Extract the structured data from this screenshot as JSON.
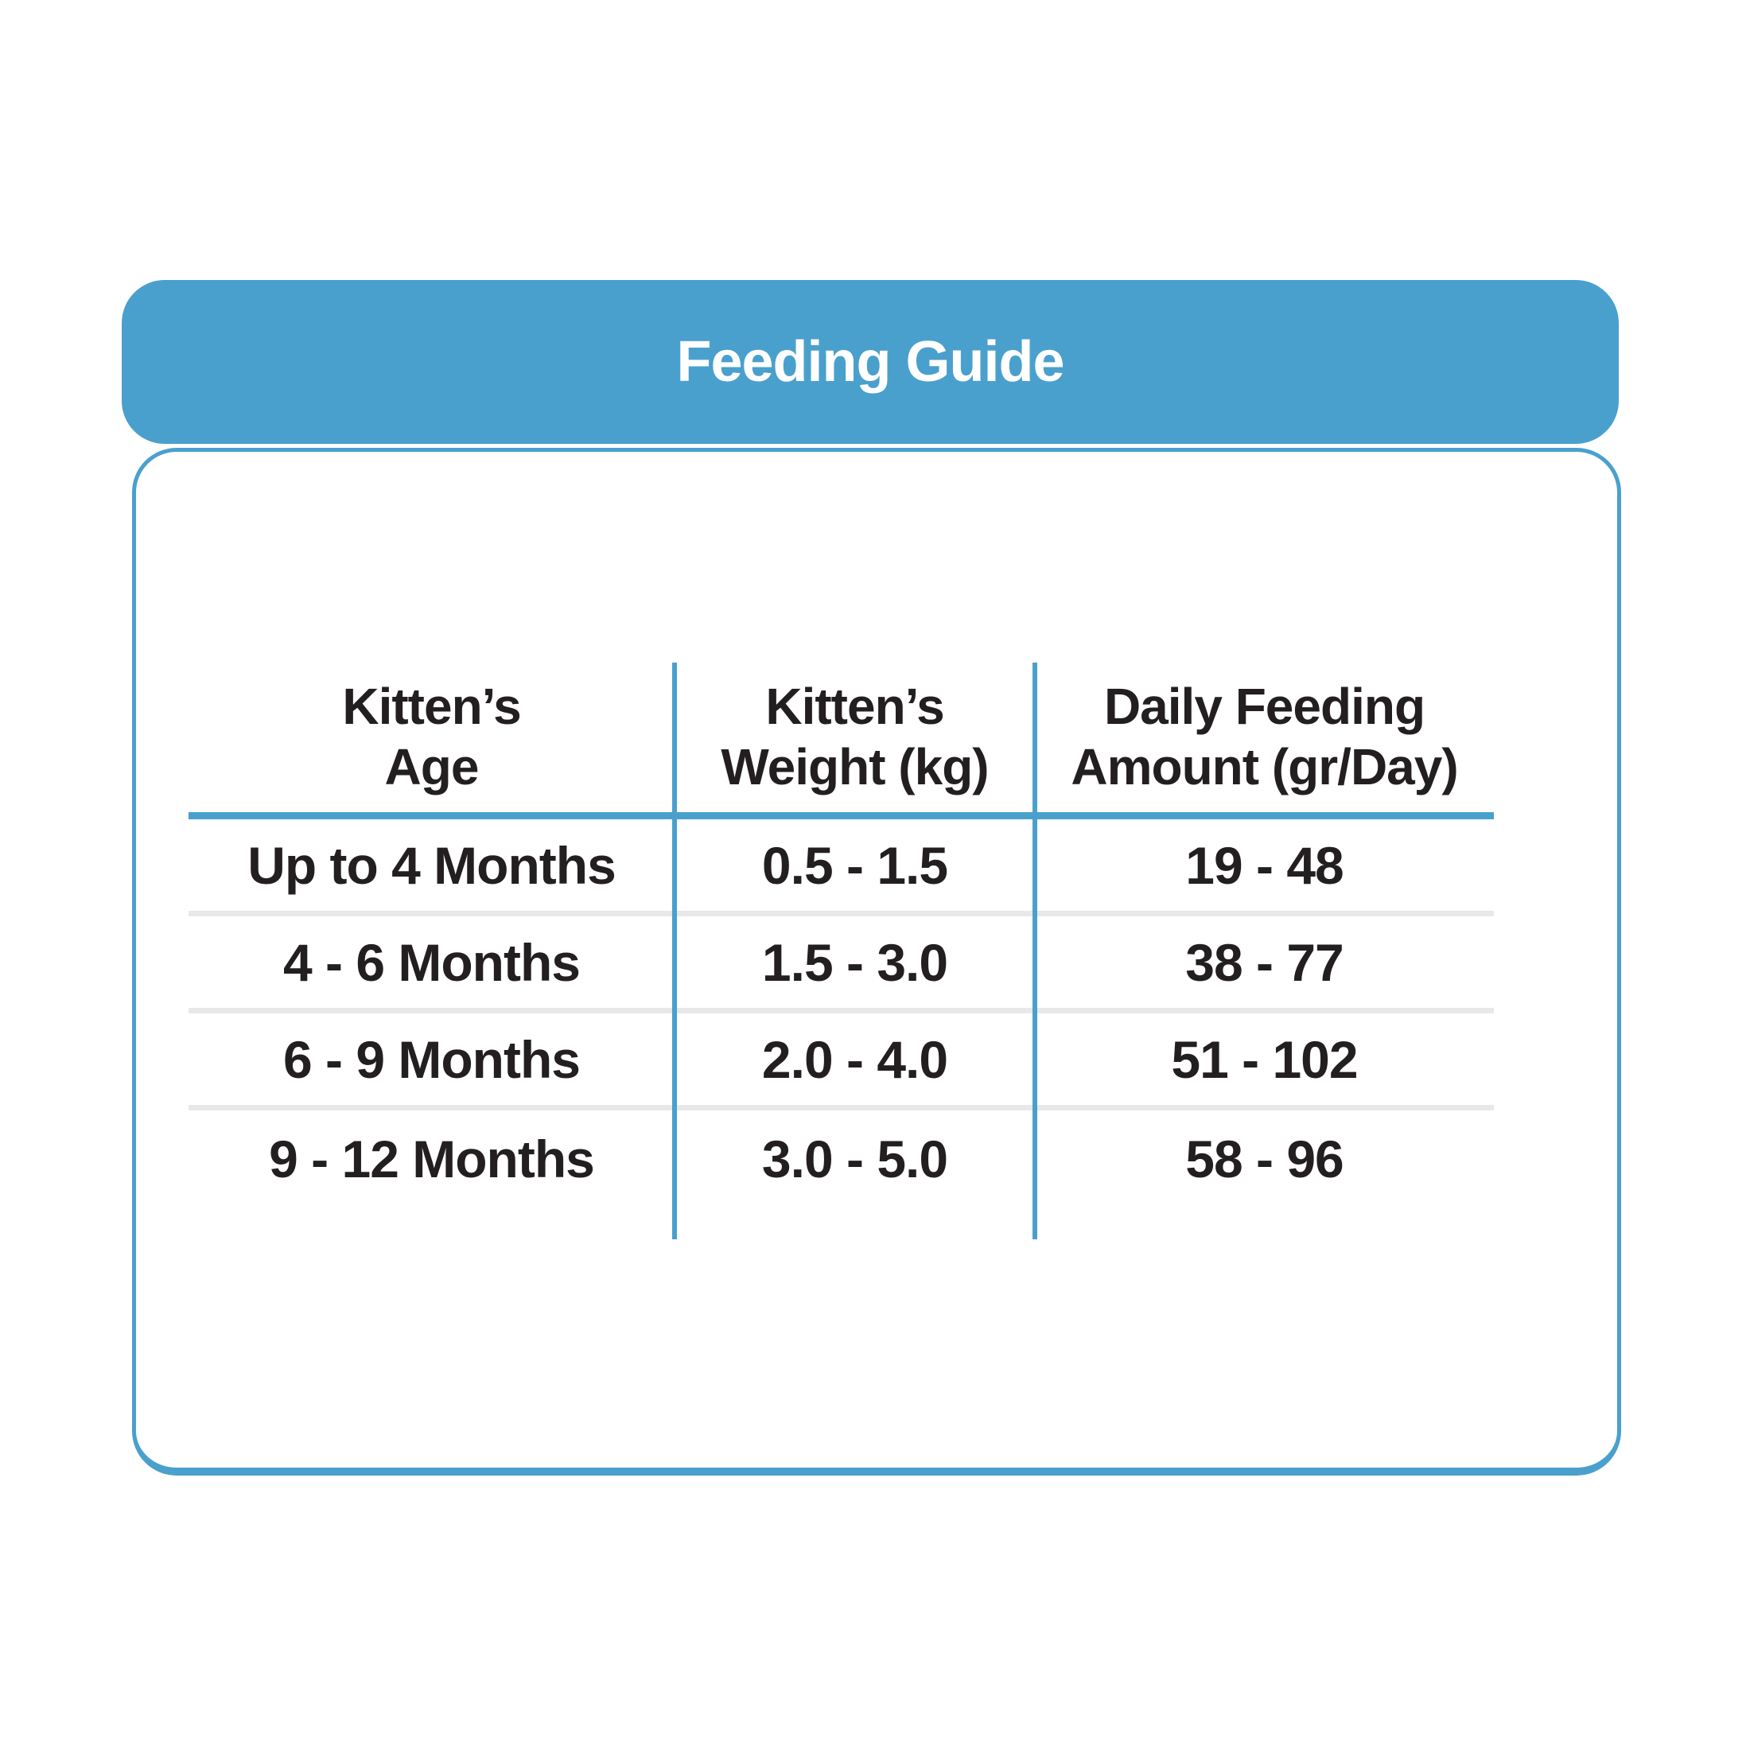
{
  "header": {
    "title": "Feeding Guide"
  },
  "table": {
    "headers": [
      {
        "line1": "Kitten’s",
        "line2": "Age"
      },
      {
        "line1": "Kitten’s",
        "line2": "Weight (kg)"
      },
      {
        "line1": "Daily Feeding",
        "line2": "Amount (gr/Day)"
      }
    ],
    "rows": [
      {
        "age": "Up to 4 Months",
        "weight": "0.5 - 1.5",
        "amount": "19 - 48"
      },
      {
        "age": "4 - 6 Months",
        "weight": "1.5 - 3.0",
        "amount": "38 - 77"
      },
      {
        "age": "6 - 9 Months",
        "weight": "2.0 - 4.0",
        "amount": "51 - 102"
      },
      {
        "age": "9 - 12 Months",
        "weight": "3.0 - 5.0",
        "amount": "58 - 96"
      }
    ]
  },
  "colors": {
    "accent": "#4AA0CD",
    "text": "#231F20",
    "divider": "#E8E8E8",
    "title_text": "#FFFFFF",
    "background": "#FFFFFF"
  },
  "chart_data": {
    "type": "table",
    "title": "Feeding Guide",
    "columns": [
      "Kitten's Age",
      "Kitten's Weight (kg)",
      "Daily Feeding Amount (gr/Day)"
    ],
    "rows": [
      [
        "Up to 4 Months",
        "0.5 - 1.5",
        "19 - 48"
      ],
      [
        "4 - 6 Months",
        "1.5 - 3.0",
        "38 - 77"
      ],
      [
        "6 - 9 Months",
        "2.0 - 4.0",
        "51 - 102"
      ],
      [
        "9 - 12 Months",
        "3.0 - 5.0",
        "58 - 96"
      ]
    ],
    "layout": {
      "header_rule": true,
      "column_dividers": true,
      "row_dividers": true
    }
  }
}
